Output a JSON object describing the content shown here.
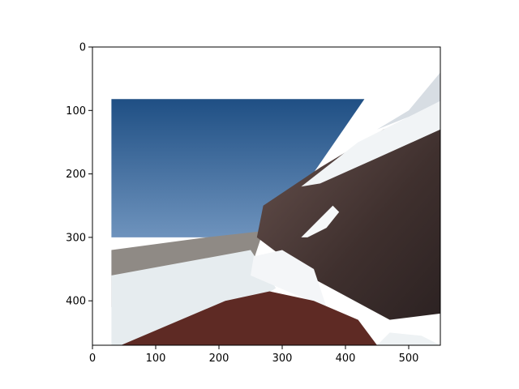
{
  "chart_data": {
    "type": "image",
    "title": "",
    "xlabel": "",
    "ylabel": "",
    "xlim": [
      0,
      550
    ],
    "ylim": [
      470,
      0
    ],
    "y_inverted": true,
    "grid": false,
    "legend": "none",
    "xticks": [
      0,
      100,
      200,
      300,
      400,
      500
    ],
    "yticks": [
      0,
      100,
      200,
      300,
      400
    ],
    "image_extent": {
      "x": [
        30,
        550
      ],
      "y": [
        40,
        470
      ]
    },
    "image_regions": [
      {
        "label": "sky",
        "points": [
          [
            30,
            82
          ],
          [
            430,
            82
          ],
          [
            300,
            270
          ],
          [
            250,
            300
          ],
          [
            30,
            300
          ]
        ],
        "color": "#2f5d8f"
      },
      {
        "label": "distant-ridge",
        "points": [
          [
            30,
            320
          ],
          [
            180,
            300
          ],
          [
            270,
            290
          ],
          [
            250,
            350
          ],
          [
            30,
            410
          ]
        ],
        "color": "#8f8a85"
      },
      {
        "label": "snow-field-left",
        "points": [
          [
            30,
            360
          ],
          [
            250,
            320
          ],
          [
            290,
            380
          ],
          [
            230,
            420
          ],
          [
            120,
            470
          ],
          [
            30,
            470
          ]
        ],
        "color": "#e6ecef"
      },
      {
        "label": "mountain-slope-dark",
        "points": [
          [
            270,
            250
          ],
          [
            360,
            190
          ],
          [
            460,
            130
          ],
          [
            550,
            95
          ],
          [
            550,
            420
          ],
          [
            470,
            430
          ],
          [
            340,
            360
          ],
          [
            260,
            300
          ]
        ],
        "color": "#4b3b38"
      },
      {
        "label": "snow-upper-ridge",
        "points": [
          [
            330,
            220
          ],
          [
            420,
            150
          ],
          [
            500,
            110
          ],
          [
            550,
            85
          ],
          [
            550,
            130
          ],
          [
            450,
            175
          ],
          [
            360,
            215
          ]
        ],
        "color": "#f1f4f6"
      },
      {
        "label": "snow-mid",
        "points": [
          [
            330,
            300
          ],
          [
            360,
            270
          ],
          [
            380,
            250
          ],
          [
            390,
            260
          ],
          [
            370,
            285
          ],
          [
            340,
            300
          ]
        ],
        "color": "#f6f8f9"
      },
      {
        "label": "snow-lower-middle",
        "points": [
          [
            255,
            330
          ],
          [
            300,
            320
          ],
          [
            350,
            350
          ],
          [
            370,
            410
          ],
          [
            320,
            390
          ],
          [
            250,
            360
          ]
        ],
        "color": "#f4f6f8"
      },
      {
        "label": "red-foreground",
        "points": [
          [
            45,
            470
          ],
          [
            210,
            400
          ],
          [
            280,
            385
          ],
          [
            350,
            400
          ],
          [
            420,
            430
          ],
          [
            450,
            470
          ]
        ],
        "color": "#5e2a24"
      },
      {
        "label": "snow-bottom-right",
        "points": [
          [
            450,
            470
          ],
          [
            470,
            450
          ],
          [
            520,
            455
          ],
          [
            550,
            470
          ]
        ],
        "color": "#eef2f4"
      },
      {
        "label": "far-snow-cap",
        "points": [
          [
            450,
            130
          ],
          [
            500,
            100
          ],
          [
            550,
            40
          ],
          [
            550,
            85
          ],
          [
            500,
            110
          ]
        ],
        "color": "#d7dde3"
      }
    ]
  }
}
